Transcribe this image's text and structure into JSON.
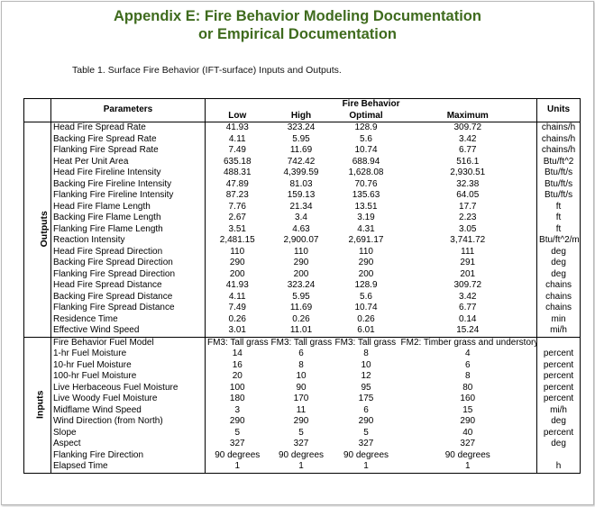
{
  "title": {
    "line1": "Appendix E: Fire Behavior Modeling Documentation",
    "line2": "or Empirical Documentation"
  },
  "caption": "Table 1. Surface Fire Behavior (IFT-surface) Inputs and Outputs.",
  "table": {
    "headers": {
      "parameters": "Parameters",
      "group": "Fire Behavior",
      "low": "Low",
      "high": "High",
      "optimal": "Optimal",
      "maximum": "Maximum",
      "units": "Units"
    },
    "sections": [
      {
        "label": "Outputs",
        "rows": [
          {
            "param": "Head Fire Spread Rate",
            "low": "41.93",
            "high": "323.24",
            "optimal": "128.9",
            "maximum": "309.72",
            "unit": "chains/h"
          },
          {
            "param": "Backing Fire Spread Rate",
            "low": "4.11",
            "high": "5.95",
            "optimal": "5.6",
            "maximum": "3.42",
            "unit": "chains/h"
          },
          {
            "param": "Flanking Fire Spread Rate",
            "low": "7.49",
            "high": "11.69",
            "optimal": "10.74",
            "maximum": "6.77",
            "unit": "chains/h"
          },
          {
            "param": "Heat Per Unit Area",
            "low": "635.18",
            "high": "742.42",
            "optimal": "688.94",
            "maximum": "516.1",
            "unit": "Btu/ft^2"
          },
          {
            "param": "Head Fire Fireline Intensity",
            "low": "488.31",
            "high": "4,399.59",
            "optimal": "1,628.08",
            "maximum": "2,930.51",
            "unit": "Btu/ft/s"
          },
          {
            "param": "Backing Fire Fireline Intensity",
            "low": "47.89",
            "high": "81.03",
            "optimal": "70.76",
            "maximum": "32.38",
            "unit": "Btu/ft/s"
          },
          {
            "param": "Flanking Fire Fireline Intensity",
            "low": "87.23",
            "high": "159.13",
            "optimal": "135.63",
            "maximum": "64.05",
            "unit": "Btu/ft/s"
          },
          {
            "param": "Head Fire Flame Length",
            "low": "7.76",
            "high": "21.34",
            "optimal": "13.51",
            "maximum": "17.7",
            "unit": "ft"
          },
          {
            "param": "Backing Fire Flame Length",
            "low": "2.67",
            "high": "3.4",
            "optimal": "3.19",
            "maximum": "2.23",
            "unit": "ft"
          },
          {
            "param": "Flanking Fire Flame Length",
            "low": "3.51",
            "high": "4.63",
            "optimal": "4.31",
            "maximum": "3.05",
            "unit": "ft"
          },
          {
            "param": "Reaction Intensity",
            "low": "2,481.15",
            "high": "2,900.07",
            "optimal": "2,691.17",
            "maximum": "3,741.72",
            "unit": "Btu/ft^2/min"
          },
          {
            "param": "Head Fire Spread Direction",
            "low": "110",
            "high": "110",
            "optimal": "110",
            "maximum": "111",
            "unit": "deg"
          },
          {
            "param": "Backing Fire Spread Direction",
            "low": "290",
            "high": "290",
            "optimal": "290",
            "maximum": "291",
            "unit": "deg"
          },
          {
            "param": "Flanking Fire Spread Direction",
            "low": "200",
            "high": "200",
            "optimal": "200",
            "maximum": "201",
            "unit": "deg"
          },
          {
            "param": "Head Fire Spread Distance",
            "low": "41.93",
            "high": "323.24",
            "optimal": "128.9",
            "maximum": "309.72",
            "unit": "chains"
          },
          {
            "param": "Backing Fire Spread Distance",
            "low": "4.11",
            "high": "5.95",
            "optimal": "5.6",
            "maximum": "3.42",
            "unit": "chains"
          },
          {
            "param": "Flanking Fire Spread Distance",
            "low": "7.49",
            "high": "11.69",
            "optimal": "10.74",
            "maximum": "6.77",
            "unit": "chains"
          },
          {
            "param": "Residence Time",
            "low": "0.26",
            "high": "0.26",
            "optimal": "0.26",
            "maximum": "0.14",
            "unit": "min"
          },
          {
            "param": "Effective Wind Speed",
            "low": "3.01",
            "high": "11.01",
            "optimal": "6.01",
            "maximum": "15.24",
            "unit": "mi/h"
          }
        ]
      },
      {
        "label": "Inputs",
        "rows": [
          {
            "param": "Fire Behavior Fuel Model",
            "low": "FM3: Tall grass",
            "high": "FM3: Tall grass",
            "optimal": "FM3: Tall grass",
            "maximum": "FM2: Timber grass and understory",
            "unit": ""
          },
          {
            "param": "1-hr Fuel Moisture",
            "low": "14",
            "high": "6",
            "optimal": "8",
            "maximum": "4",
            "unit": "percent"
          },
          {
            "param": "10-hr Fuel Moisture",
            "low": "16",
            "high": "8",
            "optimal": "10",
            "maximum": "6",
            "unit": "percent"
          },
          {
            "param": "100-hr Fuel Moisture",
            "low": "20",
            "high": "10",
            "optimal": "12",
            "maximum": "8",
            "unit": "percent"
          },
          {
            "param": "Live Herbaceous Fuel Moisture",
            "low": "100",
            "high": "90",
            "optimal": "95",
            "maximum": "80",
            "unit": "percent"
          },
          {
            "param": "Live Woody Fuel Moisture",
            "low": "180",
            "high": "170",
            "optimal": "175",
            "maximum": "160",
            "unit": "percent"
          },
          {
            "param": "Midflame Wind Speed",
            "low": "3",
            "high": "11",
            "optimal": "6",
            "maximum": "15",
            "unit": "mi/h"
          },
          {
            "param": "Wind Direction (from North)",
            "low": "290",
            "high": "290",
            "optimal": "290",
            "maximum": "290",
            "unit": "deg"
          },
          {
            "param": "Slope",
            "low": "5",
            "high": "5",
            "optimal": "5",
            "maximum": "40",
            "unit": "percent"
          },
          {
            "param": "Aspect",
            "low": "327",
            "high": "327",
            "optimal": "327",
            "maximum": "327",
            "unit": "deg"
          },
          {
            "param": "Flanking Fire Direction",
            "low": "90 degrees",
            "high": "90 degrees",
            "optimal": "90 degrees",
            "maximum": "90 degrees",
            "unit": ""
          },
          {
            "param": "Elapsed Time",
            "low": "1",
            "high": "1",
            "optimal": "1",
            "maximum": "1",
            "unit": "h"
          }
        ]
      }
    ]
  }
}
